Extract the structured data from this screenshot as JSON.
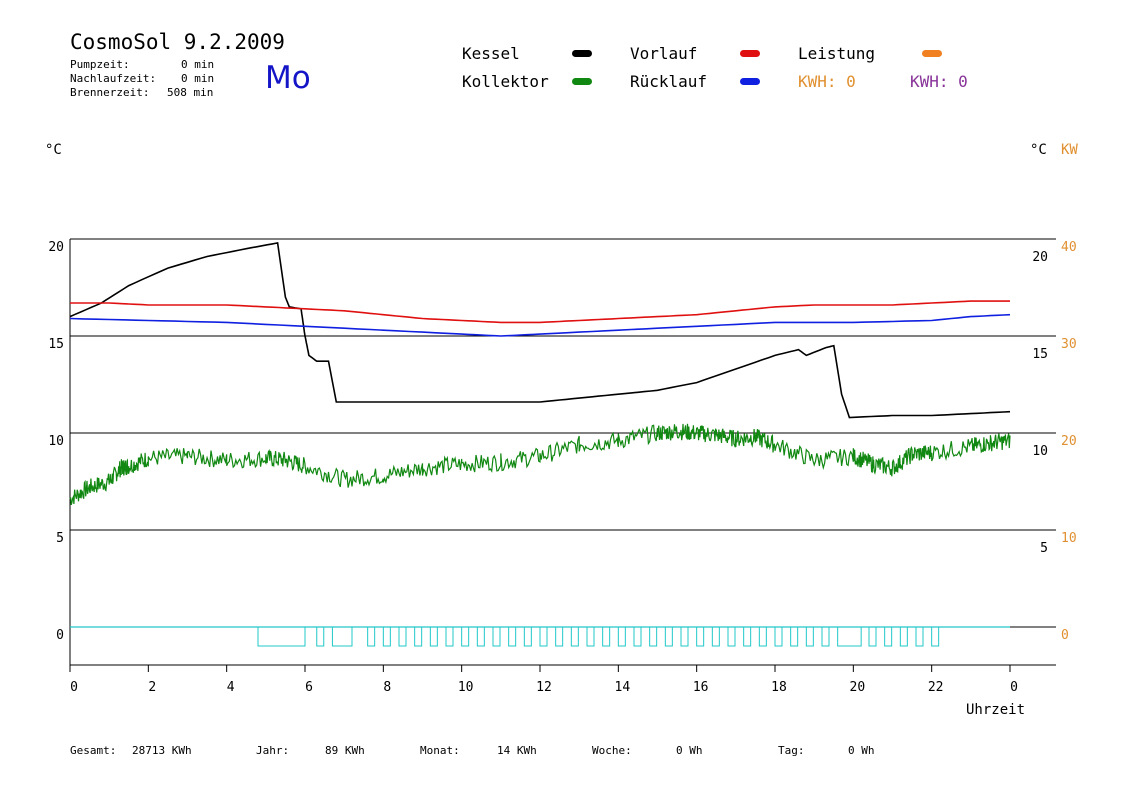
{
  "header": {
    "title": "CosmoSol 9.2.2009",
    "day": "Mo",
    "stats": [
      {
        "label": "Pumpzeit:",
        "value": "0 min"
      },
      {
        "label": "Nachlaufzeit:",
        "value": "0 min"
      },
      {
        "label": "Brennerzeit:",
        "value": "508 min"
      }
    ]
  },
  "legend": [
    {
      "name": "Kessel",
      "color": "#000000"
    },
    {
      "name": "Vorlauf",
      "color": "#e01010"
    },
    {
      "name": "Leistung",
      "color": "#f08020"
    },
    {
      "name": "Kollektor",
      "color": "#118811"
    },
    {
      "name": "Rücklauf",
      "color": "#1020e0"
    },
    {
      "name": "KWH: 0",
      "color": "#e09030"
    },
    {
      "name": "KWH: 0",
      "color": "#883399"
    }
  ],
  "axes": {
    "left_unit": "°C",
    "right_unit": "°C",
    "right_unit_kw": "KW",
    "xlabel": "Uhrzeit"
  },
  "footer": [
    {
      "label": "Gesamt:",
      "value": "28713 KWh"
    },
    {
      "label": "Jahr:",
      "value": "89 KWh"
    },
    {
      "label": "Monat:",
      "value": "14 KWh"
    },
    {
      "label": "Woche:",
      "value": "0 Wh"
    },
    {
      "label": "Tag:",
      "value": "0 Wh"
    }
  ],
  "chart_data": {
    "type": "line",
    "x_ticks": [
      "0",
      "2",
      "4",
      "6",
      "8",
      "10",
      "12",
      "14",
      "16",
      "18",
      "20",
      "22",
      "0"
    ],
    "y_left_ticks": [
      "20",
      "15",
      "10",
      "5",
      "0"
    ],
    "y_right_inner_ticks": [
      "20",
      "15",
      "10",
      "5"
    ],
    "y_right_kw_ticks": [
      "40",
      "30",
      "20",
      "10",
      "0"
    ],
    "ylim": [
      -1.5,
      20
    ],
    "xlim": [
      0,
      24
    ],
    "series": [
      {
        "name": "Kessel",
        "color": "#000000",
        "points": [
          [
            0,
            16.0
          ],
          [
            0.8,
            16.7
          ],
          [
            1.5,
            17.6
          ],
          [
            2.5,
            18.5
          ],
          [
            3.5,
            19.1
          ],
          [
            4.5,
            19.5
          ],
          [
            5.3,
            19.8
          ],
          [
            5.5,
            17.0
          ],
          [
            5.6,
            16.5
          ],
          [
            5.9,
            16.4
          ],
          [
            6.0,
            15.0
          ],
          [
            6.1,
            14.0
          ],
          [
            6.3,
            13.7
          ],
          [
            6.6,
            13.7
          ],
          [
            6.8,
            11.6
          ],
          [
            8,
            11.6
          ],
          [
            10,
            11.6
          ],
          [
            12,
            11.6
          ],
          [
            13,
            11.8
          ],
          [
            14,
            12.0
          ],
          [
            15,
            12.2
          ],
          [
            16,
            12.6
          ],
          [
            17,
            13.3
          ],
          [
            18,
            14.0
          ],
          [
            18.6,
            14.3
          ],
          [
            18.8,
            14.0
          ],
          [
            19.3,
            14.4
          ],
          [
            19.5,
            14.5
          ],
          [
            19.7,
            12.0
          ],
          [
            19.9,
            10.8
          ],
          [
            21,
            10.9
          ],
          [
            22,
            10.9
          ],
          [
            23,
            11.0
          ],
          [
            24,
            11.1
          ]
        ]
      },
      {
        "name": "Vorlauf",
        "color": "#e01010",
        "points": [
          [
            0,
            16.7
          ],
          [
            1,
            16.7
          ],
          [
            2,
            16.6
          ],
          [
            3,
            16.6
          ],
          [
            4,
            16.6
          ],
          [
            5,
            16.5
          ],
          [
            6,
            16.4
          ],
          [
            7,
            16.3
          ],
          [
            8,
            16.1
          ],
          [
            9,
            15.9
          ],
          [
            10,
            15.8
          ],
          [
            11,
            15.7
          ],
          [
            12,
            15.7
          ],
          [
            13,
            15.8
          ],
          [
            14,
            15.9
          ],
          [
            15,
            16.0
          ],
          [
            16,
            16.1
          ],
          [
            17,
            16.3
          ],
          [
            18,
            16.5
          ],
          [
            19,
            16.6
          ],
          [
            20,
            16.6
          ],
          [
            21,
            16.6
          ],
          [
            22,
            16.7
          ],
          [
            23,
            16.8
          ],
          [
            24,
            16.8
          ]
        ]
      },
      {
        "name": "Rücklauf",
        "color": "#1020e0",
        "points": [
          [
            0,
            15.9
          ],
          [
            2,
            15.8
          ],
          [
            4,
            15.7
          ],
          [
            6,
            15.5
          ],
          [
            8,
            15.3
          ],
          [
            10,
            15.1
          ],
          [
            11,
            15.0
          ],
          [
            12,
            15.1
          ],
          [
            14,
            15.3
          ],
          [
            16,
            15.5
          ],
          [
            18,
            15.7
          ],
          [
            20,
            15.7
          ],
          [
            22,
            15.8
          ],
          [
            23,
            16.0
          ],
          [
            24,
            16.1
          ]
        ]
      },
      {
        "name": "Kollektor",
        "color": "#118811",
        "points": [
          [
            0,
            6.6
          ],
          [
            0.5,
            7.2
          ],
          [
            1,
            7.5
          ],
          [
            1.3,
            8.2
          ],
          [
            1.5,
            8.3
          ],
          [
            2,
            8.7
          ],
          [
            3,
            8.8
          ],
          [
            4,
            8.6
          ],
          [
            5,
            8.7
          ],
          [
            5.5,
            8.6
          ],
          [
            6,
            8.3
          ],
          [
            7,
            7.6
          ],
          [
            8,
            7.8
          ],
          [
            9,
            8.2
          ],
          [
            10,
            8.4
          ],
          [
            11,
            8.5
          ],
          [
            12,
            8.8
          ],
          [
            13,
            9.4
          ],
          [
            14,
            9.6
          ],
          [
            15,
            10.0
          ],
          [
            15.5,
            10.1
          ],
          [
            16,
            10.0
          ],
          [
            16.5,
            9.9
          ],
          [
            17,
            9.7
          ],
          [
            17.5,
            9.8
          ],
          [
            18,
            9.4
          ],
          [
            19,
            8.6
          ],
          [
            20,
            8.8
          ],
          [
            20.5,
            8.4
          ],
          [
            21,
            8.2
          ],
          [
            21.5,
            8.9
          ],
          [
            22,
            9.0
          ],
          [
            23,
            9.3
          ],
          [
            23.5,
            9.5
          ],
          [
            24,
            9.6
          ]
        ]
      },
      {
        "name": "Leistung",
        "color": "#f08020",
        "points": []
      }
    ],
    "pump_pulses": [
      [
        4.8,
        6.0
      ],
      [
        6.7,
        7.2
      ],
      [
        19.6,
        20.2
      ]
    ],
    "pump_pulses_small": [
      6.3,
      7.6,
      8.0,
      8.4,
      8.8,
      9.2,
      9.6,
      10.0,
      10.4,
      10.8,
      11.2,
      11.6,
      12.0,
      12.4,
      12.8,
      13.2,
      13.6,
      14.0,
      14.4,
      14.8,
      15.2,
      15.6,
      16.0,
      16.4,
      16.8,
      17.2,
      17.6,
      18.0,
      18.4,
      18.8,
      19.2,
      20.4,
      20.8,
      21.2,
      21.6,
      22.0
    ]
  }
}
